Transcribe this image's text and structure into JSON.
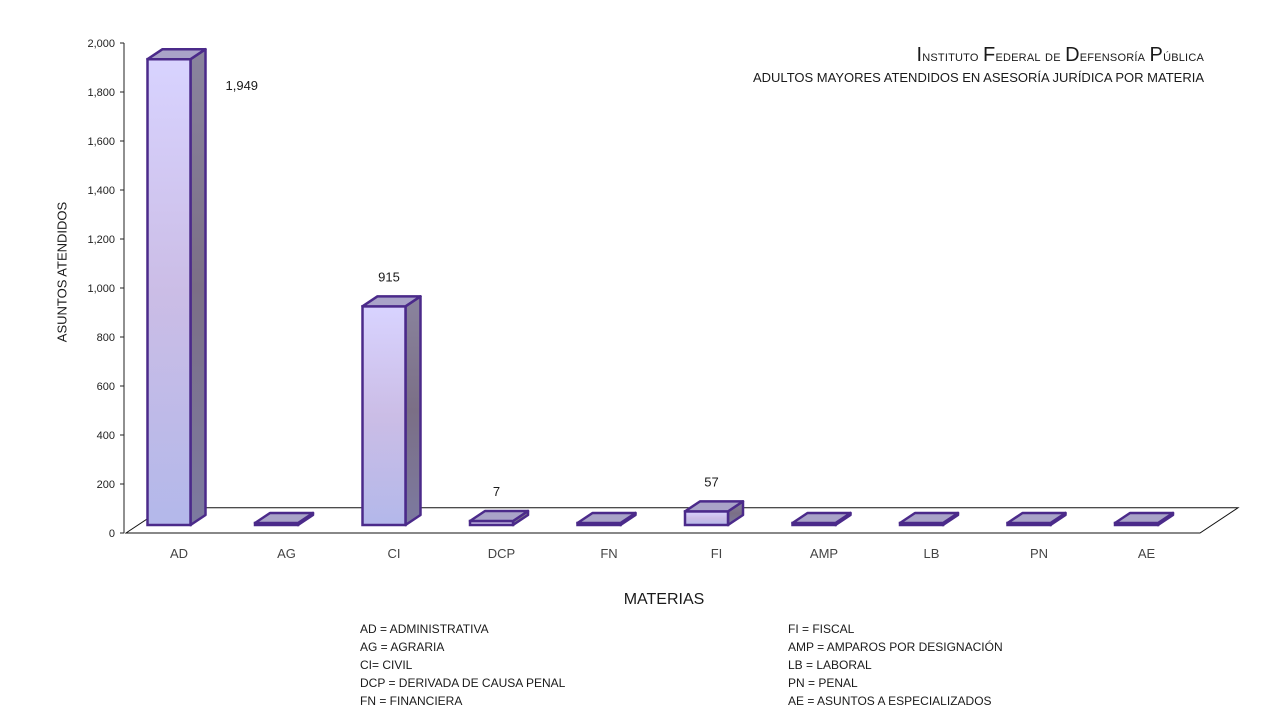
{
  "title": {
    "main": "Instituto Federal de Defensoría Pública",
    "subtitle": "ADULTOS MAYORES ATENDIDOS EN ASESORÍA JURÍDICA POR MATERIA"
  },
  "colors": {
    "bar_front_top": "#d7d2ff",
    "bar_front_bottom": "#b4bae9",
    "bar_edge": "#4b2a8a",
    "bar_side": "#7a7592",
    "bar_top": "#a9a3c8",
    "floor": "#ffffff"
  },
  "chart_data": {
    "type": "bar",
    "title": "Instituto Federal de Defensoría Pública",
    "subtitle": "ADULTOS MAYORES ATENDIDOS EN ASESORÍA JURÍDICA POR MATERIA",
    "xlabel": "MATERIAS",
    "ylabel": "ASUNTOS ATENDIDOS",
    "categories": [
      "AD",
      "AG",
      "CI",
      "DCP",
      "FN",
      "FI",
      "AMP",
      "LB",
      "PN",
      "AE"
    ],
    "values": [
      1949,
      0,
      915,
      7,
      0,
      57,
      0,
      0,
      0,
      0
    ],
    "data_labels": [
      "1,949",
      "",
      "915",
      "7",
      "",
      "57",
      "",
      "",
      "",
      ""
    ],
    "ylim": [
      0,
      2000
    ],
    "yticks": [
      0,
      200,
      400,
      600,
      800,
      1000,
      1200,
      1400,
      1600,
      1800,
      2000
    ],
    "ytick_labels": [
      "0",
      "200",
      "400",
      "600",
      "800",
      "1,000",
      "1,200",
      "1,400",
      "1,600",
      "1,800",
      "2,000"
    ],
    "grid": false,
    "three_d": true
  },
  "legend": {
    "left": [
      "AD = ADMINISTRATIVA",
      "AG = AGRARIA",
      "CI= CIVIL",
      "DCP =  DERIVADA DE CAUSA  PENAL",
      "FN = FINANCIERA"
    ],
    "right": [
      "FI = FISCAL",
      "AMP = AMPAROS POR DESIGNACIÓN",
      "LB = LABORAL",
      "PN = PENAL",
      "AE = ASUNTOS  A ESPECIALIZADOS"
    ]
  }
}
